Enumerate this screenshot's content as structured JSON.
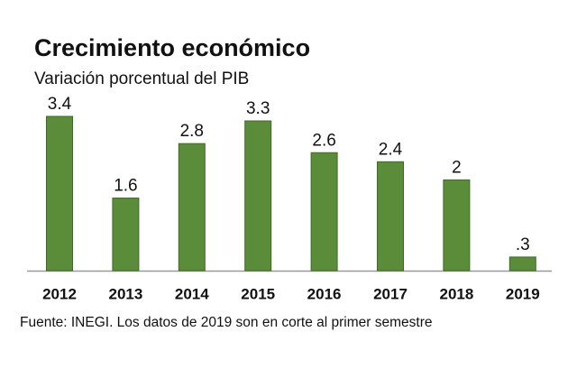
{
  "chart_data": {
    "type": "bar",
    "title": "Crecimiento económico",
    "subtitle": "Variación porcentual del PIB",
    "note": "Fuente: INEGI. Los datos de 2019 son en corte al primer semestre",
    "categories": [
      "2012",
      "2013",
      "2014",
      "2015",
      "2016",
      "2017",
      "2018",
      "2019"
    ],
    "values": [
      3.4,
      1.6,
      2.8,
      3.3,
      2.6,
      2.4,
      2,
      0.3
    ],
    "value_labels": [
      "3.4",
      "1.6",
      "2.8",
      "3.3",
      "2.6",
      "2.4",
      "2",
      ".3"
    ],
    "color": "#5b8c3a"
  }
}
